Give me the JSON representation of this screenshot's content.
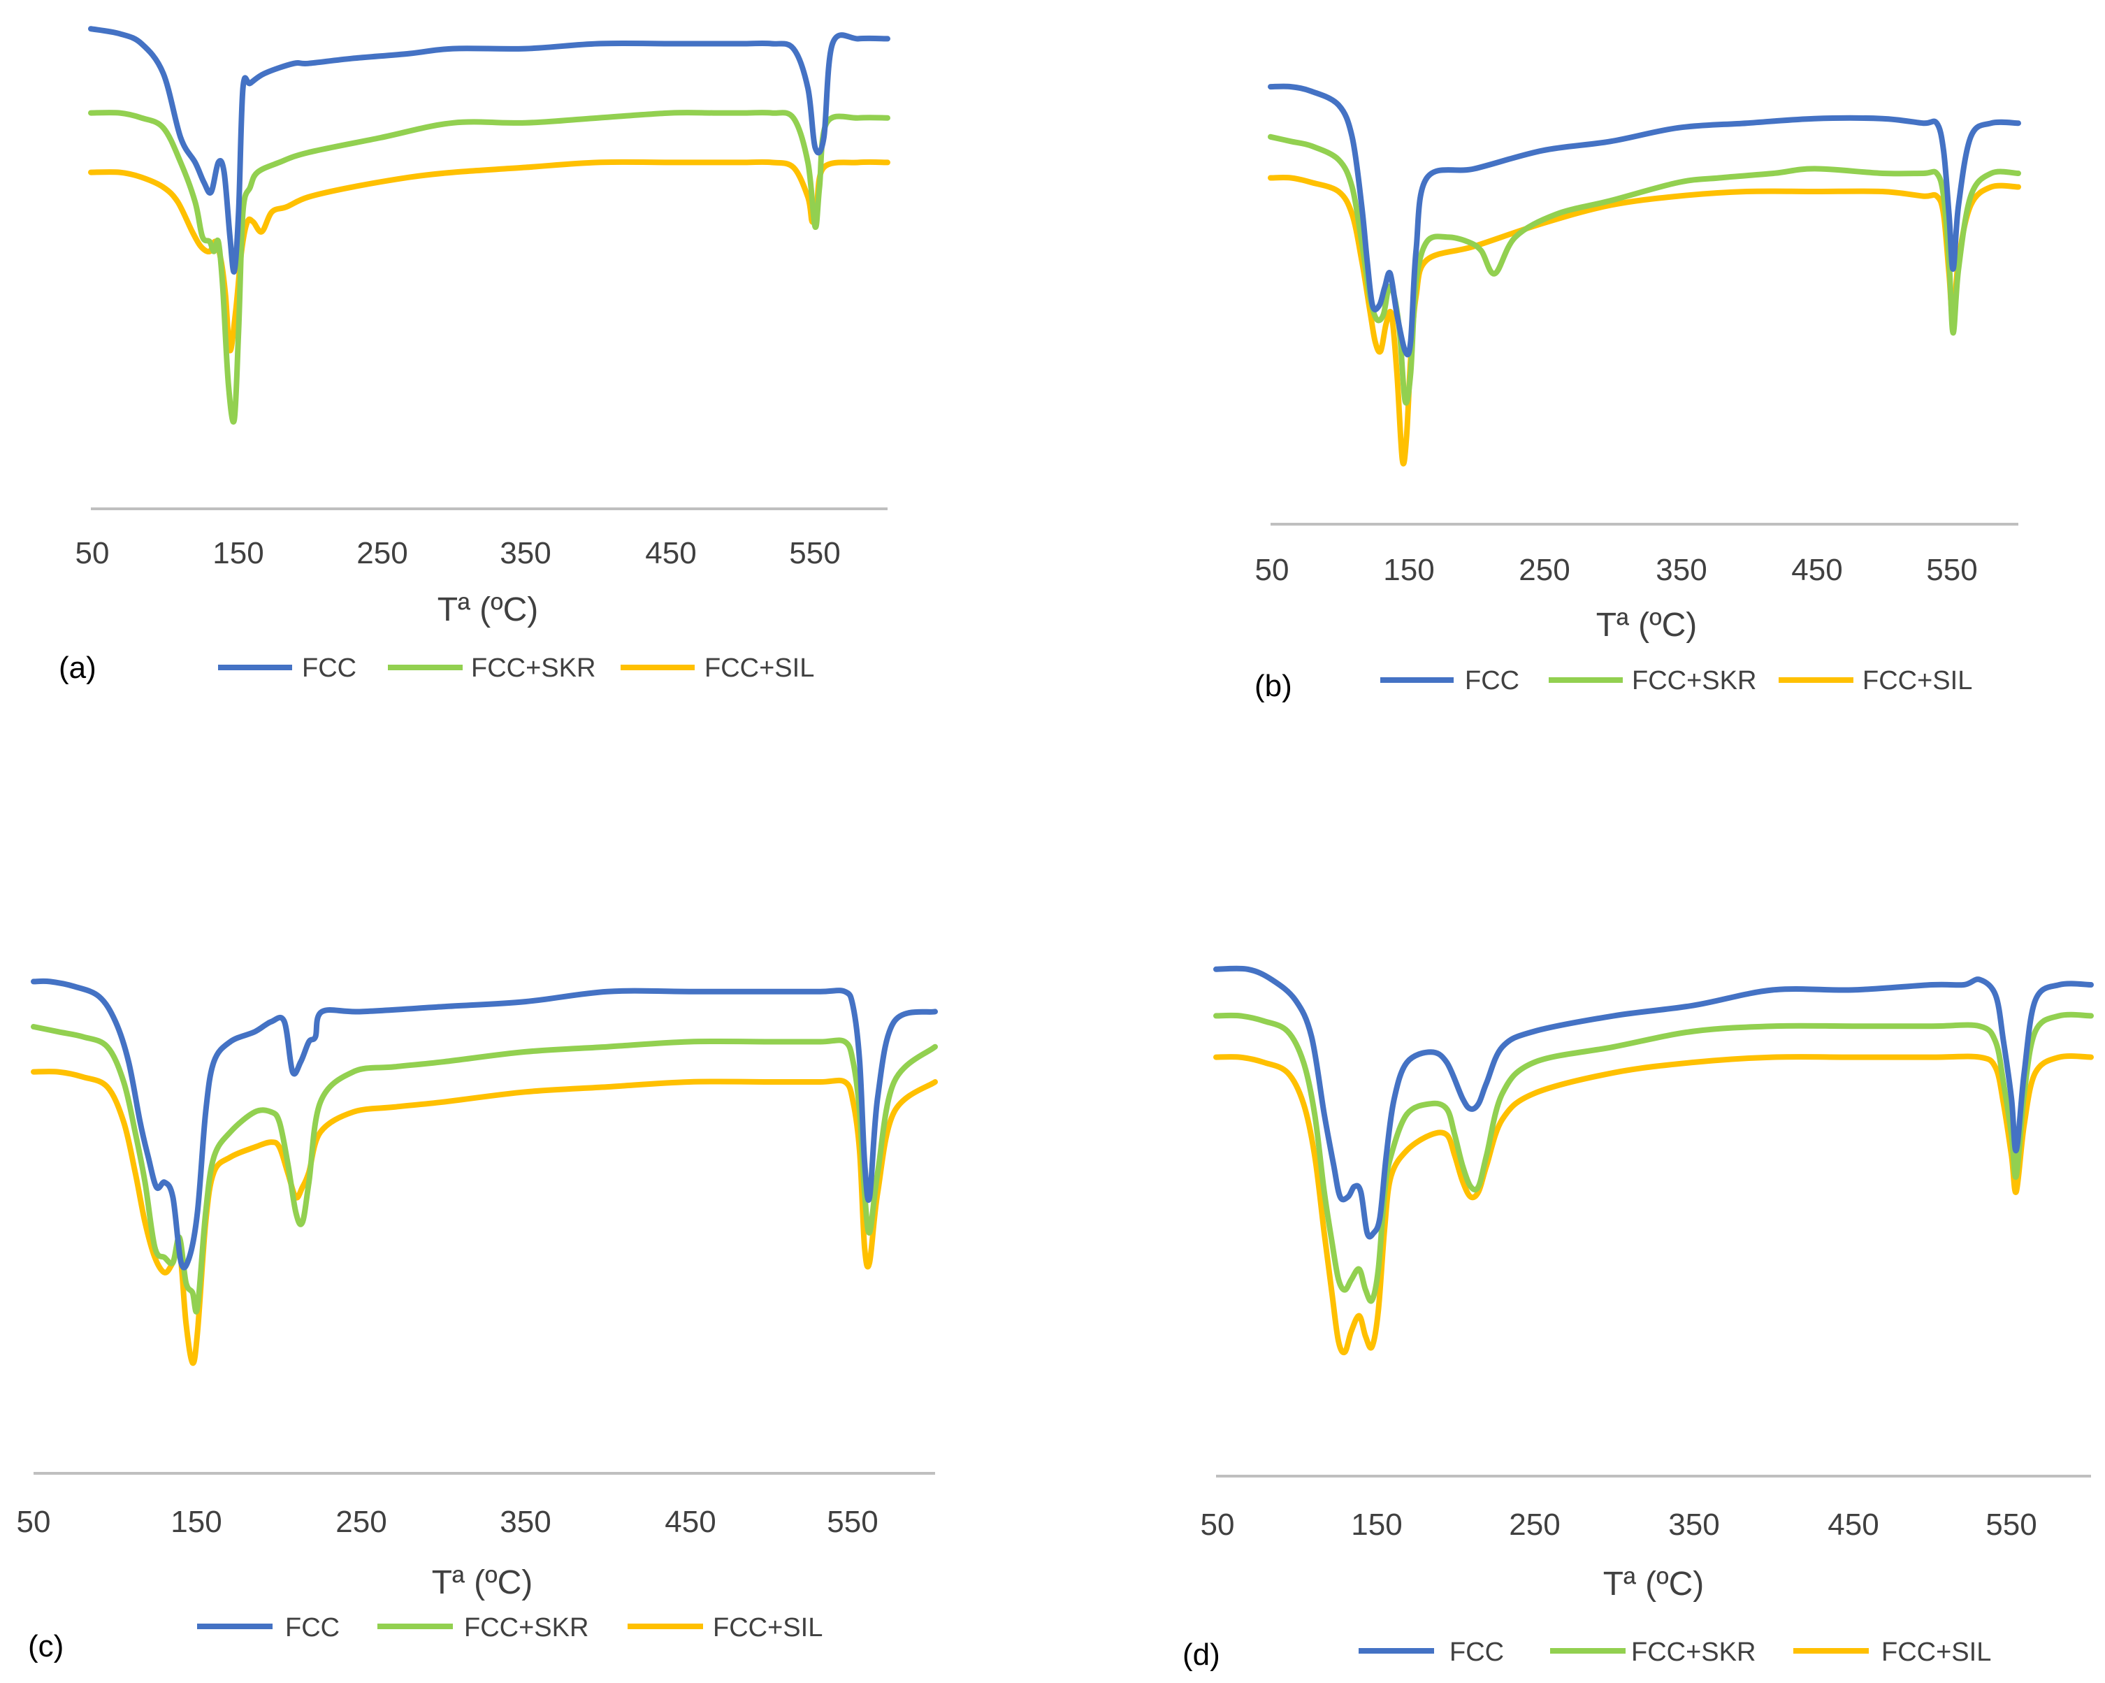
{
  "colors": {
    "FCC": "#4472C4",
    "FCC+SKR": "#92D050",
    "FCC+SIL": "#FFC000",
    "axis": "#BFBFBF"
  },
  "chart_data": [
    {
      "panel": "(a)",
      "type": "line",
      "xlabel": "Tª (ºC)",
      "ylabel": "",
      "xlim": [
        50,
        600
      ],
      "ylim": [
        0,
        100
      ],
      "xticks": [
        "50",
        "150",
        "250",
        "350",
        "450",
        "550"
      ],
      "series": [
        {
          "name": "FCC",
          "x": [
            50,
            70,
            85,
            100,
            112,
            122,
            128,
            133,
            138,
            142,
            146,
            149,
            152,
            155,
            160,
            170,
            190,
            200,
            230,
            270,
            300,
            350,
            400,
            450,
            480,
            500,
            520,
            535,
            545,
            550,
            556,
            562,
            580,
            600
          ],
          "y": [
            97,
            96,
            94,
            88,
            75,
            70,
            66,
            64,
            70,
            68,
            55,
            48,
            60,
            85,
            86,
            88,
            90,
            90,
            91,
            92,
            93,
            93,
            94,
            94,
            94,
            94,
            94,
            93,
            85,
            73,
            75,
            94,
            95,
            95
          ]
        },
        {
          "name": "FCC+SKR",
          "x": [
            50,
            70,
            85,
            100,
            112,
            122,
            127,
            132,
            135,
            138,
            141,
            145,
            149,
            152,
            155,
            160,
            165,
            180,
            200,
            250,
            300,
            350,
            400,
            450,
            480,
            500,
            520,
            535,
            545,
            550,
            553,
            558,
            580,
            600
          ],
          "y": [
            80,
            80,
            79,
            77,
            70,
            62,
            55,
            54,
            52,
            54,
            45,
            25,
            18,
            36,
            60,
            65,
            68,
            70,
            72,
            75,
            78,
            78,
            79,
            80,
            80,
            80,
            80,
            79,
            70,
            57,
            65,
            78,
            79,
            79
          ]
        },
        {
          "name": "FCC+SIL",
          "x": [
            50,
            70,
            85,
            100,
            110,
            120,
            126,
            132,
            136,
            140,
            143,
            146,
            150,
            154,
            158,
            162,
            168,
            175,
            185,
            200,
            230,
            270,
            300,
            350,
            400,
            450,
            480,
            500,
            520,
            535,
            545,
            548,
            551,
            556,
            580,
            600
          ],
          "y": [
            68,
            68,
            67,
            65,
            62,
            56,
            53,
            52,
            54,
            50,
            43,
            32,
            40,
            52,
            58,
            58,
            56,
            60,
            61,
            63,
            65,
            67,
            68,
            69,
            70,
            70,
            70,
            70,
            70,
            69,
            63,
            58,
            61,
            69,
            70,
            70
          ]
        }
      ]
    },
    {
      "panel": "(b)",
      "type": "line",
      "xlabel": "Tª (ºC)",
      "ylabel": "",
      "xlim": [
        50,
        600
      ],
      "ylim": [
        0,
        100
      ],
      "xticks": [
        "50",
        "150",
        "250",
        "350",
        "450",
        "550"
      ],
      "series": [
        {
          "name": "FCC",
          "x": [
            50,
            65,
            80,
            100,
            110,
            117,
            121,
            125,
            130,
            134,
            138,
            143,
            149,
            153,
            157,
            165,
            200,
            250,
            300,
            350,
            400,
            450,
            500,
            530,
            540,
            545,
            549,
            552,
            556,
            565,
            580,
            600
          ],
          "y": [
            96,
            96,
            95,
            92,
            85,
            70,
            58,
            48,
            48,
            52,
            55,
            46,
            38,
            40,
            60,
            76,
            78,
            82,
            84,
            87,
            88,
            89,
            89,
            88,
            88,
            82,
            68,
            56,
            70,
            85,
            88,
            88
          ]
        },
        {
          "name": "FCC+SKR",
          "x": [
            50,
            65,
            80,
            100,
            110,
            117,
            123,
            128,
            133,
            137,
            141,
            145,
            149,
            153,
            157,
            165,
            180,
            195,
            205,
            215,
            230,
            260,
            300,
            350,
            380,
            420,
            450,
            500,
            530,
            540,
            545,
            549,
            552,
            556,
            565,
            580,
            600
          ],
          "y": [
            85,
            84,
            83,
            80,
            74,
            62,
            50,
            45,
            46,
            52,
            50,
            42,
            27,
            33,
            53,
            62,
            63,
            62,
            60,
            55,
            63,
            68,
            71,
            75,
            76,
            77,
            78,
            77,
            77,
            77,
            72,
            58,
            42,
            56,
            72,
            77,
            77
          ]
        },
        {
          "name": "FCC+SIL",
          "x": [
            50,
            65,
            80,
            100,
            110,
            117,
            123,
            127,
            131,
            135,
            139,
            143,
            147,
            150,
            153,
            157,
            165,
            200,
            250,
            300,
            350,
            400,
            450,
            500,
            530,
            540,
            545,
            549,
            552,
            556,
            565,
            580,
            600
          ],
          "y": [
            76,
            76,
            75,
            73,
            68,
            58,
            47,
            40,
            38,
            44,
            46,
            33,
            14,
            19,
            36,
            50,
            58,
            61,
            66,
            70,
            72,
            73,
            73,
            73,
            72,
            72,
            68,
            55,
            45,
            58,
            70,
            74,
            74
          ]
        }
      ]
    },
    {
      "panel": "(c)",
      "type": "line",
      "xlabel": "Tª (ºC)",
      "ylabel": "",
      "xlim": [
        50,
        600
      ],
      "ylim": [
        0,
        100
      ],
      "xticks": [
        "50",
        "150",
        "250",
        "350",
        "450",
        "550"
      ],
      "series": [
        {
          "name": "FCC",
          "x": [
            50,
            60,
            75,
            90,
            100,
            108,
            115,
            120,
            125,
            130,
            135,
            140,
            145,
            150,
            155,
            160,
            170,
            185,
            195,
            203,
            208,
            213,
            218,
            222,
            226,
            250,
            300,
            350,
            400,
            450,
            500,
            530,
            545,
            550,
            554,
            557,
            560,
            565,
            575,
            600
          ],
          "y": [
            98,
            98,
            97,
            95,
            90,
            82,
            70,
            63,
            57,
            58,
            55,
            42,
            43,
            52,
            72,
            82,
            86,
            88,
            90,
            90,
            80,
            82,
            86,
            87,
            92,
            92,
            93,
            94,
            96,
            96,
            96,
            96,
            96,
            93,
            82,
            62,
            55,
            75,
            90,
            92
          ]
        },
        {
          "name": "FCC+SKR",
          "x": [
            50,
            65,
            80,
            95,
            105,
            112,
            118,
            124,
            130,
            135,
            139,
            143,
            147,
            150,
            155,
            160,
            170,
            185,
            195,
            200,
            205,
            210,
            214,
            218,
            225,
            245,
            270,
            300,
            350,
            400,
            450,
            500,
            530,
            545,
            550,
            554,
            557,
            560,
            565,
            575,
            600
          ],
          "y": [
            89,
            88,
            87,
            85,
            78,
            68,
            58,
            45,
            43,
            42,
            47,
            38,
            36,
            33,
            52,
            63,
            68,
            72,
            72,
            70,
            62,
            52,
            50,
            58,
            74,
            80,
            81,
            82,
            84,
            85,
            86,
            86,
            86,
            86,
            82,
            72,
            56,
            48,
            60,
            78,
            85
          ]
        },
        {
          "name": "FCC+SIL",
          "x": [
            50,
            65,
            80,
            95,
            105,
            112,
            118,
            124,
            130,
            135,
            139,
            143,
            147,
            150,
            155,
            160,
            170,
            185,
            195,
            200,
            205,
            210,
            214,
            218,
            225,
            245,
            270,
            300,
            350,
            400,
            450,
            500,
            530,
            545,
            550,
            554,
            557,
            560,
            565,
            575,
            600
          ],
          "y": [
            80,
            80,
            79,
            77,
            70,
            60,
            50,
            43,
            40,
            42,
            45,
            30,
            22,
            28,
            50,
            60,
            63,
            65,
            66,
            65,
            60,
            55,
            57,
            60,
            68,
            72,
            73,
            74,
            76,
            77,
            78,
            78,
            78,
            78,
            74,
            64,
            45,
            42,
            56,
            72,
            78
          ]
        }
      ]
    },
    {
      "panel": "(d)",
      "type": "line",
      "xlabel": "Tª (ºC)",
      "ylabel": "",
      "xlim": [
        50,
        600
      ],
      "ylim": [
        0,
        100
      ],
      "xticks": [
        "50",
        "150",
        "250",
        "350",
        "450",
        "550"
      ],
      "series": [
        {
          "name": "FCC",
          "x": [
            50,
            70,
            85,
            100,
            110,
            118,
            124,
            128,
            133,
            137,
            141,
            145,
            149,
            153,
            157,
            162,
            170,
            185,
            195,
            205,
            210,
            215,
            220,
            230,
            250,
            300,
            350,
            400,
            450,
            500,
            520,
            530,
            540,
            545,
            550,
            553,
            558,
            565,
            580,
            600
          ],
          "y": [
            98,
            98,
            96,
            92,
            85,
            70,
            60,
            54,
            54,
            56,
            55,
            47,
            47,
            50,
            62,
            73,
            80,
            82,
            80,
            73,
            71,
            72,
            76,
            83,
            86,
            89,
            91,
            94,
            94,
            95,
            95,
            96,
            93,
            84,
            73,
            63,
            78,
            92,
            95,
            95
          ]
        },
        {
          "name": "FCC+SKR",
          "x": [
            50,
            65,
            80,
            95,
            105,
            112,
            118,
            123,
            127,
            131,
            135,
            140,
            144,
            148,
            152,
            156,
            160,
            170,
            185,
            195,
            200,
            205,
            210,
            215,
            220,
            230,
            250,
            300,
            350,
            400,
            450,
            500,
            530,
            540,
            545,
            550,
            553,
            558,
            565,
            580,
            600
          ],
          "y": [
            89,
            89,
            88,
            86,
            80,
            70,
            55,
            45,
            38,
            36,
            38,
            40,
            36,
            34,
            40,
            55,
            62,
            70,
            72,
            71,
            66,
            60,
            56,
            56,
            62,
            74,
            80,
            83,
            86,
            87,
            87,
            87,
            87,
            84,
            76,
            66,
            58,
            74,
            86,
            89,
            89
          ]
        },
        {
          "name": "FCC+SIL",
          "x": [
            50,
            65,
            80,
            95,
            105,
            112,
            118,
            123,
            127,
            131,
            135,
            140,
            144,
            148,
            152,
            156,
            160,
            170,
            185,
            195,
            200,
            205,
            210,
            215,
            220,
            230,
            250,
            300,
            350,
            400,
            450,
            500,
            530,
            540,
            545,
            550,
            553,
            558,
            565,
            580,
            600
          ],
          "y": [
            81,
            81,
            80,
            78,
            72,
            62,
            47,
            35,
            26,
            24,
            28,
            31,
            27,
            25,
            32,
            48,
            58,
            63,
            66,
            66,
            62,
            57,
            54,
            55,
            60,
            69,
            74,
            78,
            80,
            81,
            81,
            81,
            81,
            79,
            72,
            62,
            55,
            68,
            78,
            81,
            81
          ]
        }
      ]
    }
  ]
}
